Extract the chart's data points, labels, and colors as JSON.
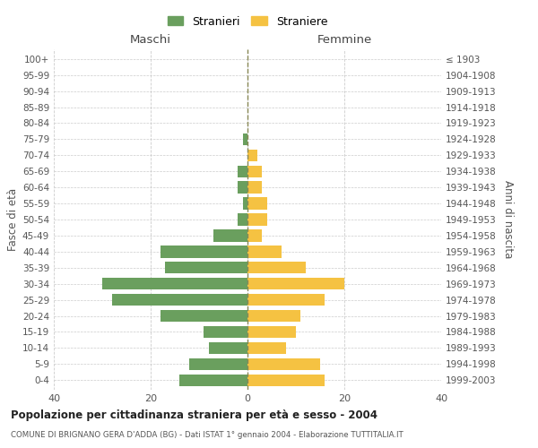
{
  "age_groups": [
    "0-4",
    "5-9",
    "10-14",
    "15-19",
    "20-24",
    "25-29",
    "30-34",
    "35-39",
    "40-44",
    "45-49",
    "50-54",
    "55-59",
    "60-64",
    "65-69",
    "70-74",
    "75-79",
    "80-84",
    "85-89",
    "90-94",
    "95-99",
    "100+"
  ],
  "birth_years": [
    "1999-2003",
    "1994-1998",
    "1989-1993",
    "1984-1988",
    "1979-1983",
    "1974-1978",
    "1969-1973",
    "1964-1968",
    "1959-1963",
    "1954-1958",
    "1949-1953",
    "1944-1948",
    "1939-1943",
    "1934-1938",
    "1929-1933",
    "1924-1928",
    "1919-1923",
    "1914-1918",
    "1909-1913",
    "1904-1908",
    "≤ 1903"
  ],
  "males": [
    14,
    12,
    8,
    9,
    18,
    28,
    30,
    17,
    18,
    7,
    2,
    1,
    2,
    2,
    0,
    1,
    0,
    0,
    0,
    0,
    0
  ],
  "females": [
    16,
    15,
    8,
    10,
    11,
    16,
    20,
    12,
    7,
    3,
    4,
    4,
    3,
    3,
    2,
    0,
    0,
    0,
    0,
    0,
    0
  ],
  "male_color": "#6a9f5e",
  "female_color": "#f5c242",
  "background_color": "#ffffff",
  "grid_color": "#cccccc",
  "title": "Popolazione per cittadinanza straniera per età e sesso - 2004",
  "subtitle": "COMUNE DI BRIGNANO GERA D'ADDA (BG) - Dati ISTAT 1° gennaio 2004 - Elaborazione TUTTITALIA.IT",
  "xlabel_left": "Maschi",
  "xlabel_right": "Femmine",
  "ylabel_left": "Fasce di età",
  "ylabel_right": "Anni di nascita",
  "legend_male": "Stranieri",
  "legend_female": "Straniere",
  "xlim": 40,
  "xticks": [
    -40,
    -20,
    0,
    20,
    40
  ],
  "xticklabels": [
    "40",
    "20",
    "0",
    "20",
    "40"
  ]
}
